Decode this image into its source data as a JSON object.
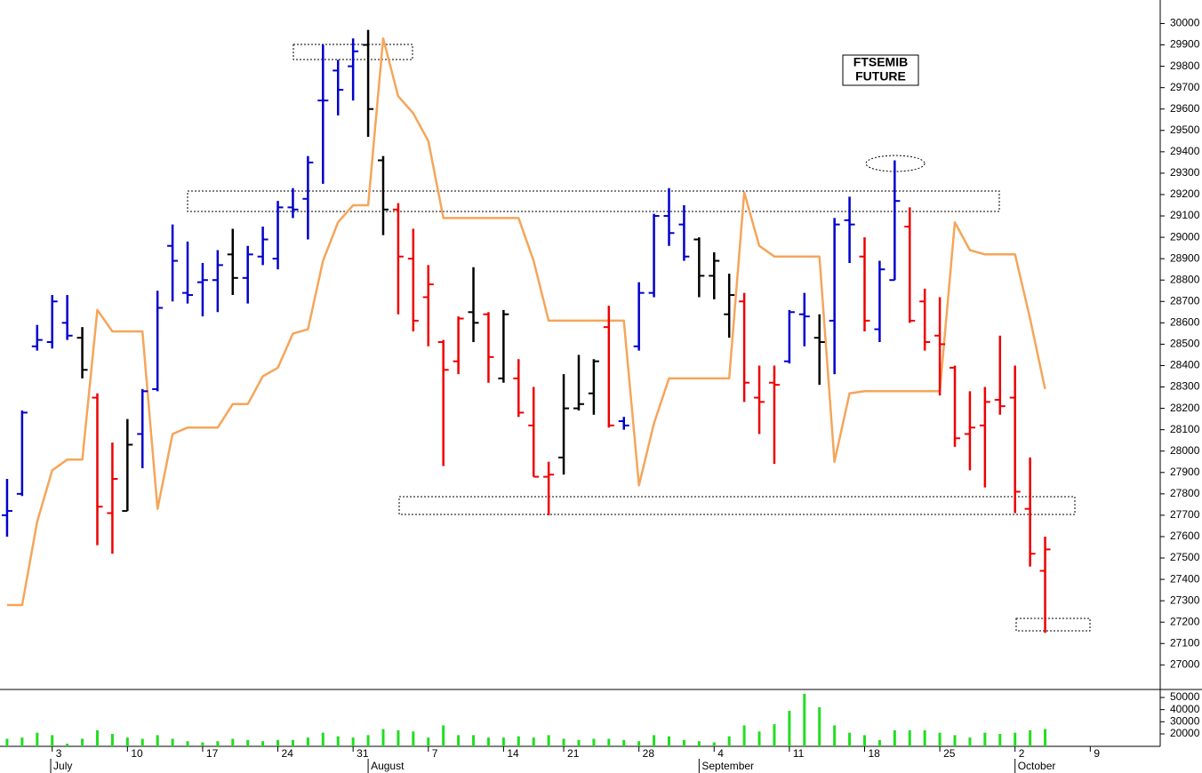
{
  "chart_data": [
    {
      "type": "ohlc",
      "title_lines": [
        "FTSEMIB",
        "FUTURE"
      ],
      "xlim": [
        -0.47,
        76.65
      ],
      "ylim": [
        26885,
        30110
      ],
      "yticks": [
        27000,
        27100,
        27200,
        27300,
        27400,
        27500,
        27600,
        27700,
        27800,
        27900,
        28000,
        28100,
        28200,
        28300,
        28400,
        28500,
        28600,
        28700,
        28800,
        28900,
        29000,
        29100,
        29200,
        29300,
        29400,
        29500,
        29600,
        29700,
        29800,
        29900,
        30000
      ],
      "open": [
        27700,
        27800,
        28490,
        28510,
        28600,
        28530,
        28250,
        27710,
        27720,
        28080,
        28290,
        28960,
        28740,
        28790,
        28800,
        28920,
        28810,
        28910,
        28900,
        29140,
        29180,
        29640,
        29780,
        29800,
        29900,
        29360,
        29130,
        28900,
        28720,
        28510,
        28420,
        28650,
        28640,
        28340,
        28340,
        28120,
        27880,
        27970,
        28200,
        28270,
        28580,
        28140,
        28490,
        28740,
        29100,
        29060,
        28990,
        28820,
        28640,
        28700,
        28250,
        28320,
        28420,
        28640,
        28530,
        28610,
        29080,
        28910,
        28570,
        28800,
        29050,
        28700,
        28540,
        28390,
        28080,
        28120,
        28240,
        28250,
        27730,
        27440
      ],
      "high": [
        27870,
        28190,
        28590,
        28730,
        28730,
        28580,
        28270,
        28040,
        28150,
        28290,
        28750,
        29060,
        28980,
        28880,
        28940,
        29040,
        28960,
        29050,
        29170,
        29230,
        29380,
        29900,
        29830,
        29930,
        29970,
        29380,
        29160,
        29040,
        28870,
        28520,
        28630,
        28860,
        28650,
        28660,
        28430,
        28300,
        27950,
        28360,
        28450,
        28430,
        28680,
        28160,
        28790,
        29110,
        29230,
        29150,
        29000,
        28930,
        28830,
        28740,
        28400,
        28400,
        28660,
        28740,
        28640,
        29090,
        29190,
        29000,
        28890,
        29360,
        29140,
        28760,
        28720,
        28400,
        28280,
        28300,
        28540,
        28400,
        27970,
        27600
      ],
      "low": [
        27600,
        27790,
        28470,
        28480,
        28520,
        28340,
        27560,
        27520,
        27720,
        27920,
        28280,
        28700,
        28690,
        28630,
        28650,
        28730,
        28690,
        28870,
        28850,
        29090,
        28990,
        29250,
        29570,
        29640,
        29470,
        29010,
        28640,
        28560,
        28490,
        27930,
        28360,
        28510,
        28320,
        28320,
        28160,
        27880,
        27700,
        27890,
        28190,
        28170,
        28110,
        28100,
        28470,
        28720,
        28960,
        28890,
        28720,
        28710,
        28530,
        28230,
        28080,
        27940,
        28410,
        28490,
        28310,
        28360,
        28880,
        28560,
        28510,
        28800,
        28600,
        28470,
        28260,
        28020,
        27910,
        27830,
        28170,
        27710,
        27460,
        27150
      ],
      "close": [
        27720,
        28180,
        28520,
        28700,
        28540,
        28380,
        27740,
        27870,
        28030,
        28280,
        28670,
        28890,
        28730,
        28800,
        28870,
        28810,
        28920,
        28990,
        29140,
        29130,
        29350,
        29640,
        29690,
        29870,
        29600,
        29130,
        28910,
        28610,
        28780,
        28380,
        28620,
        28600,
        28440,
        28640,
        28180,
        27880,
        27890,
        28200,
        28220,
        28420,
        28120,
        28120,
        28740,
        29100,
        29020,
        28910,
        28820,
        28890,
        28730,
        28320,
        28230,
        28310,
        28650,
        28630,
        28510,
        29060,
        29060,
        28610,
        28850,
        29170,
        28610,
        28510,
        28500,
        28060,
        28110,
        28230,
        28210,
        27810,
        27520,
        27540
      ],
      "colors": [
        "#0000cc",
        "#0000cc",
        "#0000cc",
        "#0000cc",
        "#0000cc",
        "#000000",
        "#ee0000",
        "#ee0000",
        "#000000",
        "#0000cc",
        "#0000cc",
        "#0000cc",
        "#0000cc",
        "#0000cc",
        "#0000cc",
        "#000000",
        "#0000cc",
        "#0000cc",
        "#0000cc",
        "#0000cc",
        "#0000cc",
        "#0000cc",
        "#0000cc",
        "#0000cc",
        "#000000",
        "#000000",
        "#ee0000",
        "#ee0000",
        "#ee0000",
        "#ee0000",
        "#ee0000",
        "#000000",
        "#ee0000",
        "#000000",
        "#ee0000",
        "#ee0000",
        "#ee0000",
        "#000000",
        "#000000",
        "#000000",
        "#ee0000",
        "#0000cc",
        "#0000cc",
        "#0000cc",
        "#0000cc",
        "#0000cc",
        "#000000",
        "#000000",
        "#000000",
        "#ee0000",
        "#ee0000",
        "#ee0000",
        "#0000cc",
        "#0000cc",
        "#000000",
        "#0000cc",
        "#0000cc",
        "#ee0000",
        "#0000cc",
        "#0000cc",
        "#ee0000",
        "#ee0000",
        "#ee0000",
        "#ee0000",
        "#ee0000",
        "#ee0000",
        "#ee0000",
        "#ee0000",
        "#ee0000",
        "#ee0000"
      ],
      "line": {
        "color": "#f5a55a",
        "values": [
          27280,
          27280,
          27670,
          27910,
          27960,
          27960,
          28660,
          28560,
          28560,
          28560,
          27730,
          28080,
          28110,
          28110,
          28110,
          28220,
          28220,
          28350,
          28390,
          28550,
          28570,
          28890,
          29070,
          29150,
          29150,
          29930,
          29660,
          29580,
          29450,
          29090,
          29090,
          29090,
          29090,
          29090,
          29090,
          28890,
          28610,
          28610,
          28610,
          28610,
          28610,
          28610,
          27840,
          28130,
          28340,
          28340,
          28340,
          28340,
          28340,
          29210,
          28960,
          28910,
          28910,
          28910,
          28910,
          27950,
          28270,
          28280,
          28280,
          28280,
          28280,
          28280,
          28280,
          29070,
          28940,
          28920,
          28920,
          28920,
          28620,
          28290
        ]
      }
    },
    {
      "type": "bar",
      "xlim": [
        -0.47,
        76.65
      ],
      "ylim": [
        9760,
        56580
      ],
      "yticks": [
        20000,
        30000,
        40000,
        50000
      ],
      "color": "#22dd22",
      "values": [
        16000,
        17000,
        21000,
        19000,
        12000,
        16000,
        23000,
        20000,
        17000,
        16000,
        19000,
        16000,
        14000,
        13000,
        14000,
        16000,
        15000,
        14000,
        15000,
        15000,
        17000,
        21000,
        18000,
        17000,
        19000,
        24000,
        23000,
        22000,
        17000,
        27000,
        19000,
        19000,
        17000,
        17000,
        18000,
        17000,
        19000,
        16000,
        15000,
        16000,
        16000,
        15000,
        14000,
        19000,
        18000,
        15000,
        14000,
        13000,
        18000,
        27000,
        22000,
        28000,
        39000,
        53000,
        42000,
        27000,
        21000,
        19000,
        15000,
        23000,
        23000,
        23000,
        21000,
        19000,
        17000,
        21000,
        20000,
        21000,
        23000,
        24000
      ],
      "xticks": [
        {
          "value": 3,
          "label": "3"
        },
        {
          "value": 8,
          "label": "10"
        },
        {
          "value": 13,
          "label": "17"
        },
        {
          "value": 18,
          "label": "24"
        },
        {
          "value": 23,
          "label": "31"
        },
        {
          "value": 28,
          "label": "7"
        },
        {
          "value": 33,
          "label": "14"
        },
        {
          "value": 37,
          "label": "21"
        },
        {
          "value": 42,
          "label": "28"
        },
        {
          "value": 47,
          "label": "4"
        },
        {
          "value": 52,
          "label": "11"
        },
        {
          "value": 57,
          "label": "18"
        },
        {
          "value": 62,
          "label": "25"
        },
        {
          "value": 67,
          "label": "2"
        },
        {
          "value": 72,
          "label": "9"
        }
      ],
      "month_ticks": [
        {
          "value": 2.9,
          "label": "July"
        },
        {
          "value": 24,
          "label": "August"
        },
        {
          "value": 46,
          "label": "September"
        },
        {
          "value": 67,
          "label": "October"
        }
      ]
    }
  ]
}
